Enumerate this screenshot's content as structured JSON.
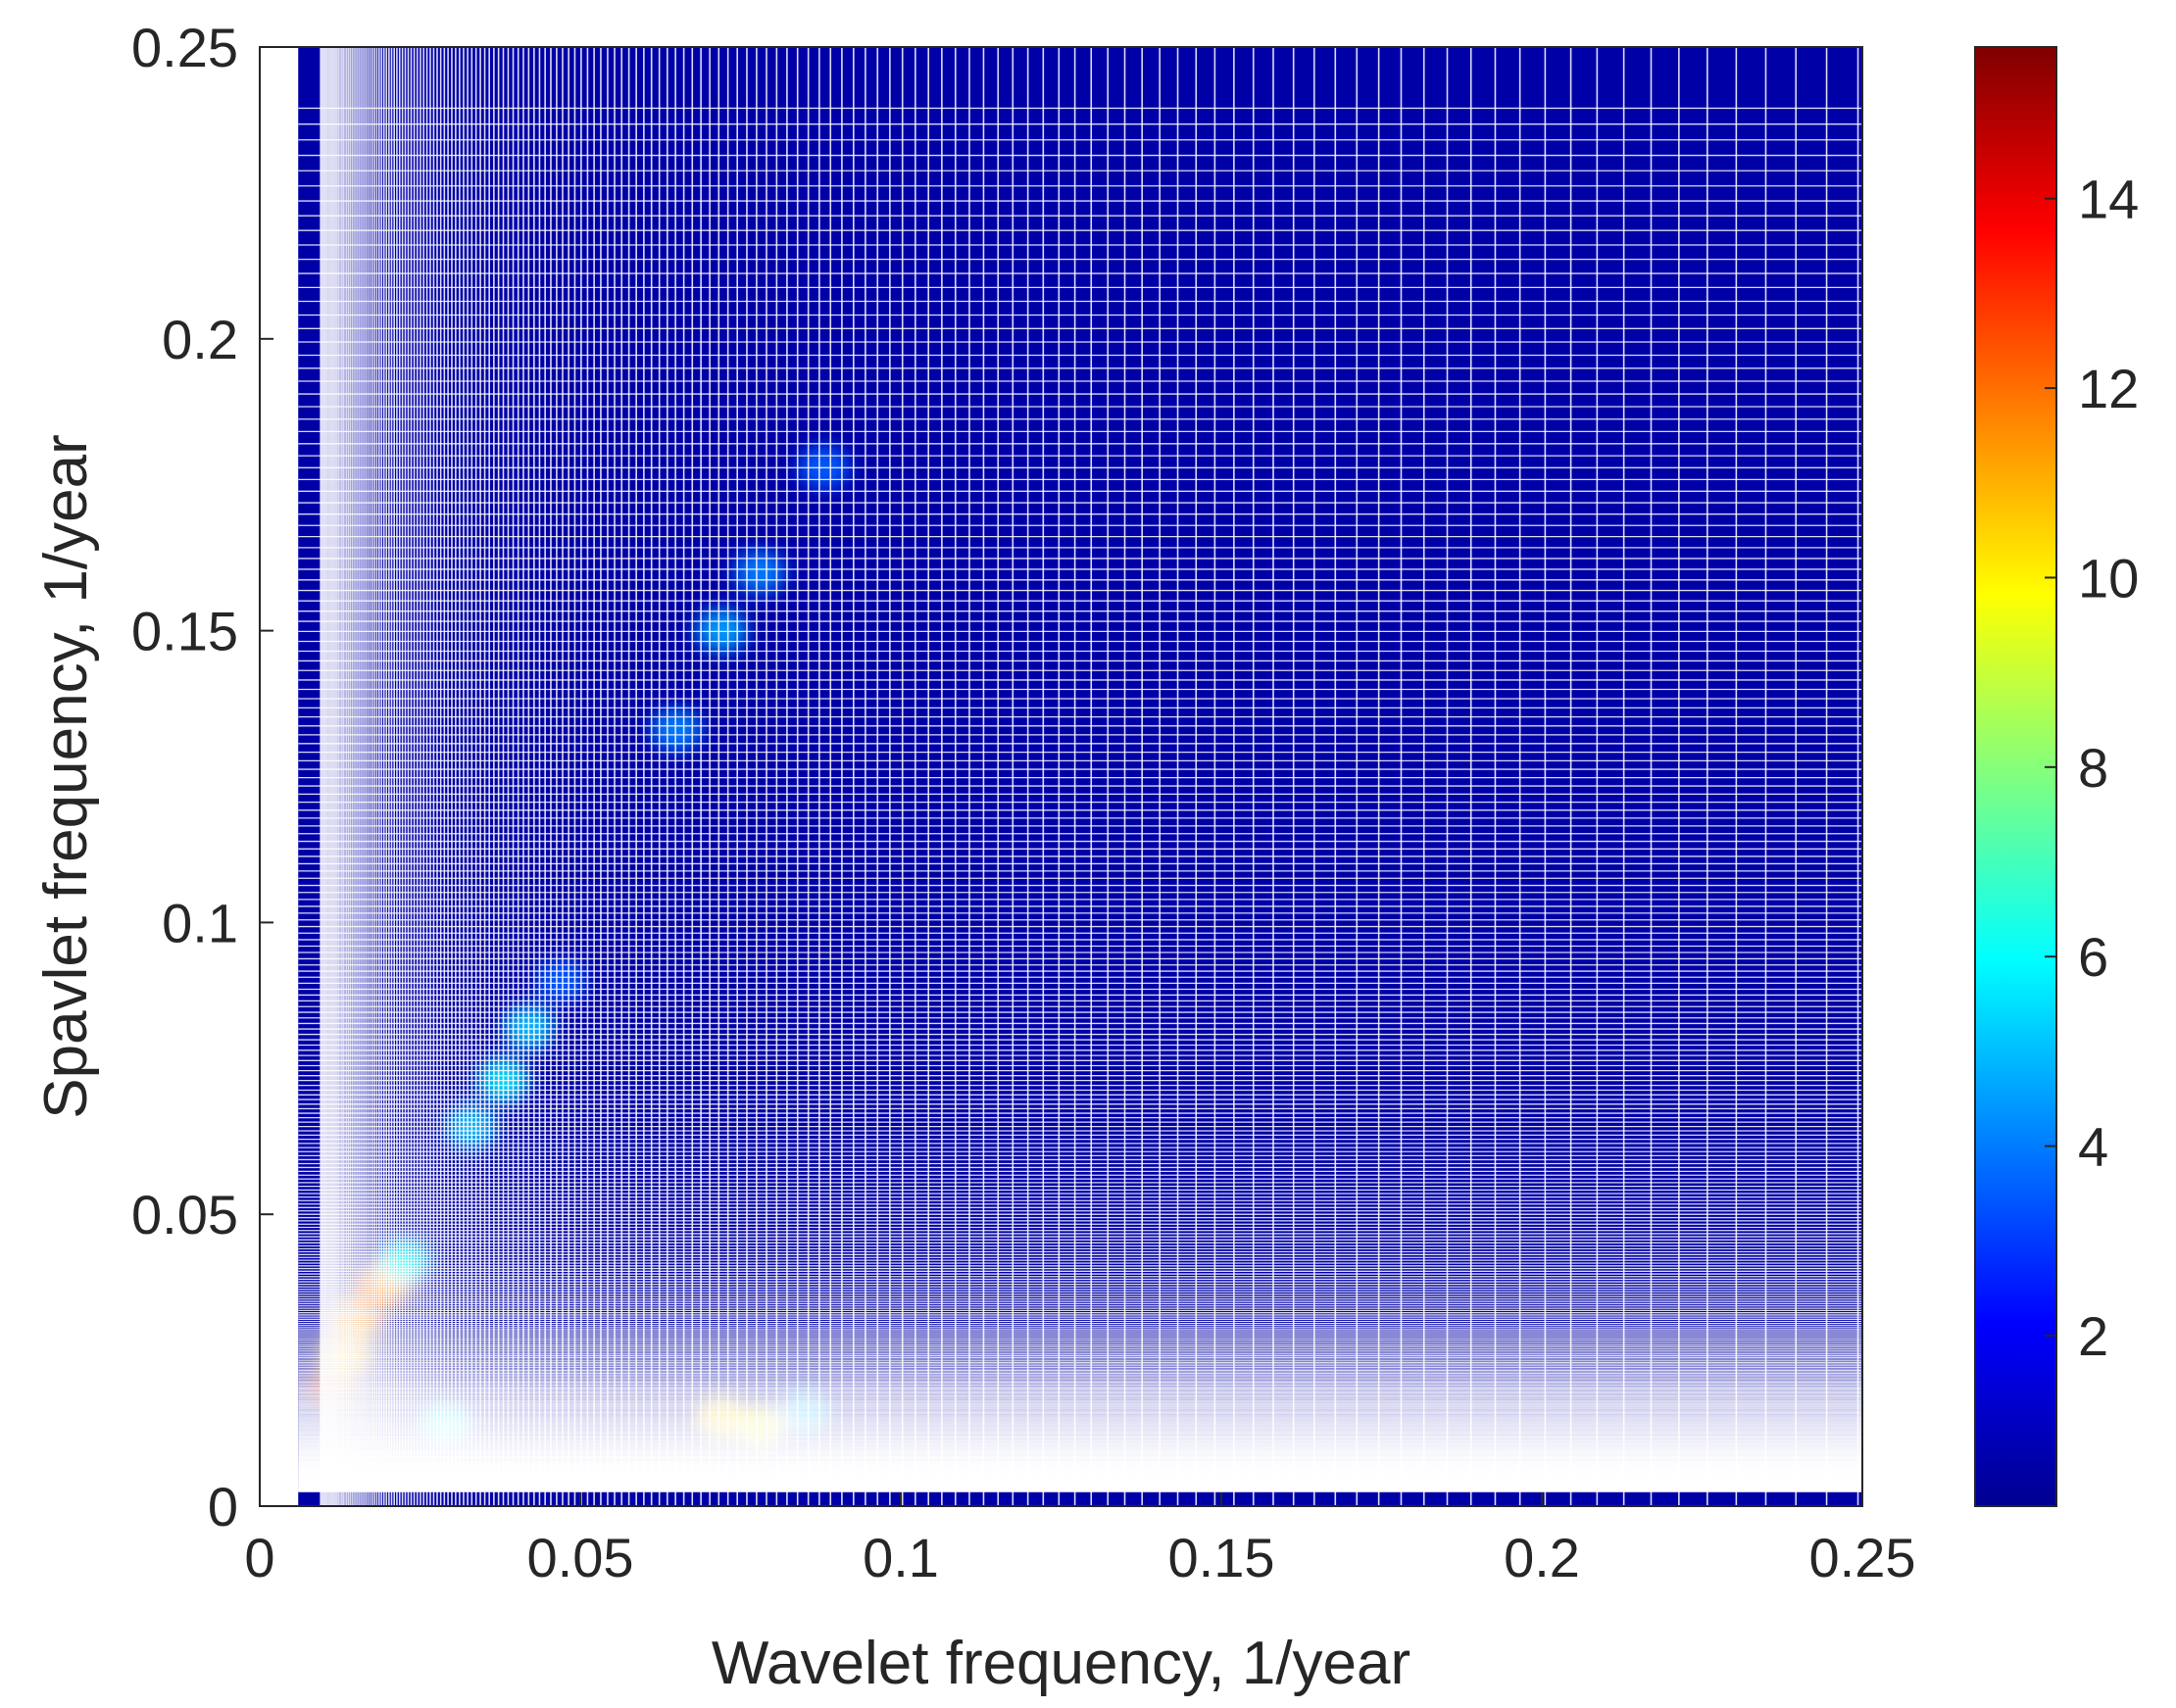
{
  "chart_data": {
    "type": "heatmap",
    "title": "",
    "xlabel": "Wavelet frequency, 1/year",
    "ylabel": "Spavlet frequency, 1/year",
    "xlim": [
      0,
      0.25
    ],
    "ylim": [
      0,
      0.25
    ],
    "x_ticks": [
      "0",
      "0.05",
      "0.1",
      "0.15",
      "0.2",
      "0.25"
    ],
    "y_ticks": [
      "0",
      "0.05",
      "0.1",
      "0.15",
      "0.2",
      "0.25"
    ],
    "x_tick_values": [
      0,
      0.05,
      0.1,
      0.15,
      0.2,
      0.25
    ],
    "y_tick_values": [
      0,
      0.05,
      0.1,
      0.15,
      0.2,
      0.25
    ],
    "data_extent": {
      "x": [
        0.006,
        0.25
      ],
      "y": [
        0,
        0.25
      ]
    },
    "background_value": 0.8,
    "colormap": "jet",
    "colorbar": {
      "range": [
        0.2,
        15.6
      ],
      "ticks": [
        2,
        4,
        6,
        8,
        10,
        12,
        14
      ],
      "tick_labels": [
        "2",
        "4",
        "6",
        "8",
        "10",
        "12",
        "14"
      ],
      "placement": "right"
    },
    "grid": false,
    "hotspots": [
      {
        "x": 0.0115,
        "y": 0.02,
        "value": 15.0
      },
      {
        "x": 0.0135,
        "y": 0.026,
        "value": 11.0
      },
      {
        "x": 0.015,
        "y": 0.032,
        "value": 11.5
      },
      {
        "x": 0.0185,
        "y": 0.037,
        "value": 13.5
      },
      {
        "x": 0.0205,
        "y": 0.039,
        "value": 11.0
      },
      {
        "x": 0.0225,
        "y": 0.042,
        "value": 6.0
      },
      {
        "x": 0.029,
        "y": 0.014,
        "value": 6.0
      },
      {
        "x": 0.072,
        "y": 0.015,
        "value": 10.5
      },
      {
        "x": 0.078,
        "y": 0.0135,
        "value": 10.0
      },
      {
        "x": 0.085,
        "y": 0.016,
        "value": 5.0
      },
      {
        "x": 0.033,
        "y": 0.065,
        "value": 5.0
      },
      {
        "x": 0.038,
        "y": 0.073,
        "value": 5.5
      },
      {
        "x": 0.042,
        "y": 0.082,
        "value": 5.0
      },
      {
        "x": 0.047,
        "y": 0.09,
        "value": 3.5
      },
      {
        "x": 0.065,
        "y": 0.133,
        "value": 4.0
      },
      {
        "x": 0.072,
        "y": 0.15,
        "value": 4.5
      },
      {
        "x": 0.078,
        "y": 0.16,
        "value": 4.0
      },
      {
        "x": 0.088,
        "y": 0.178,
        "value": 3.5
      }
    ]
  }
}
